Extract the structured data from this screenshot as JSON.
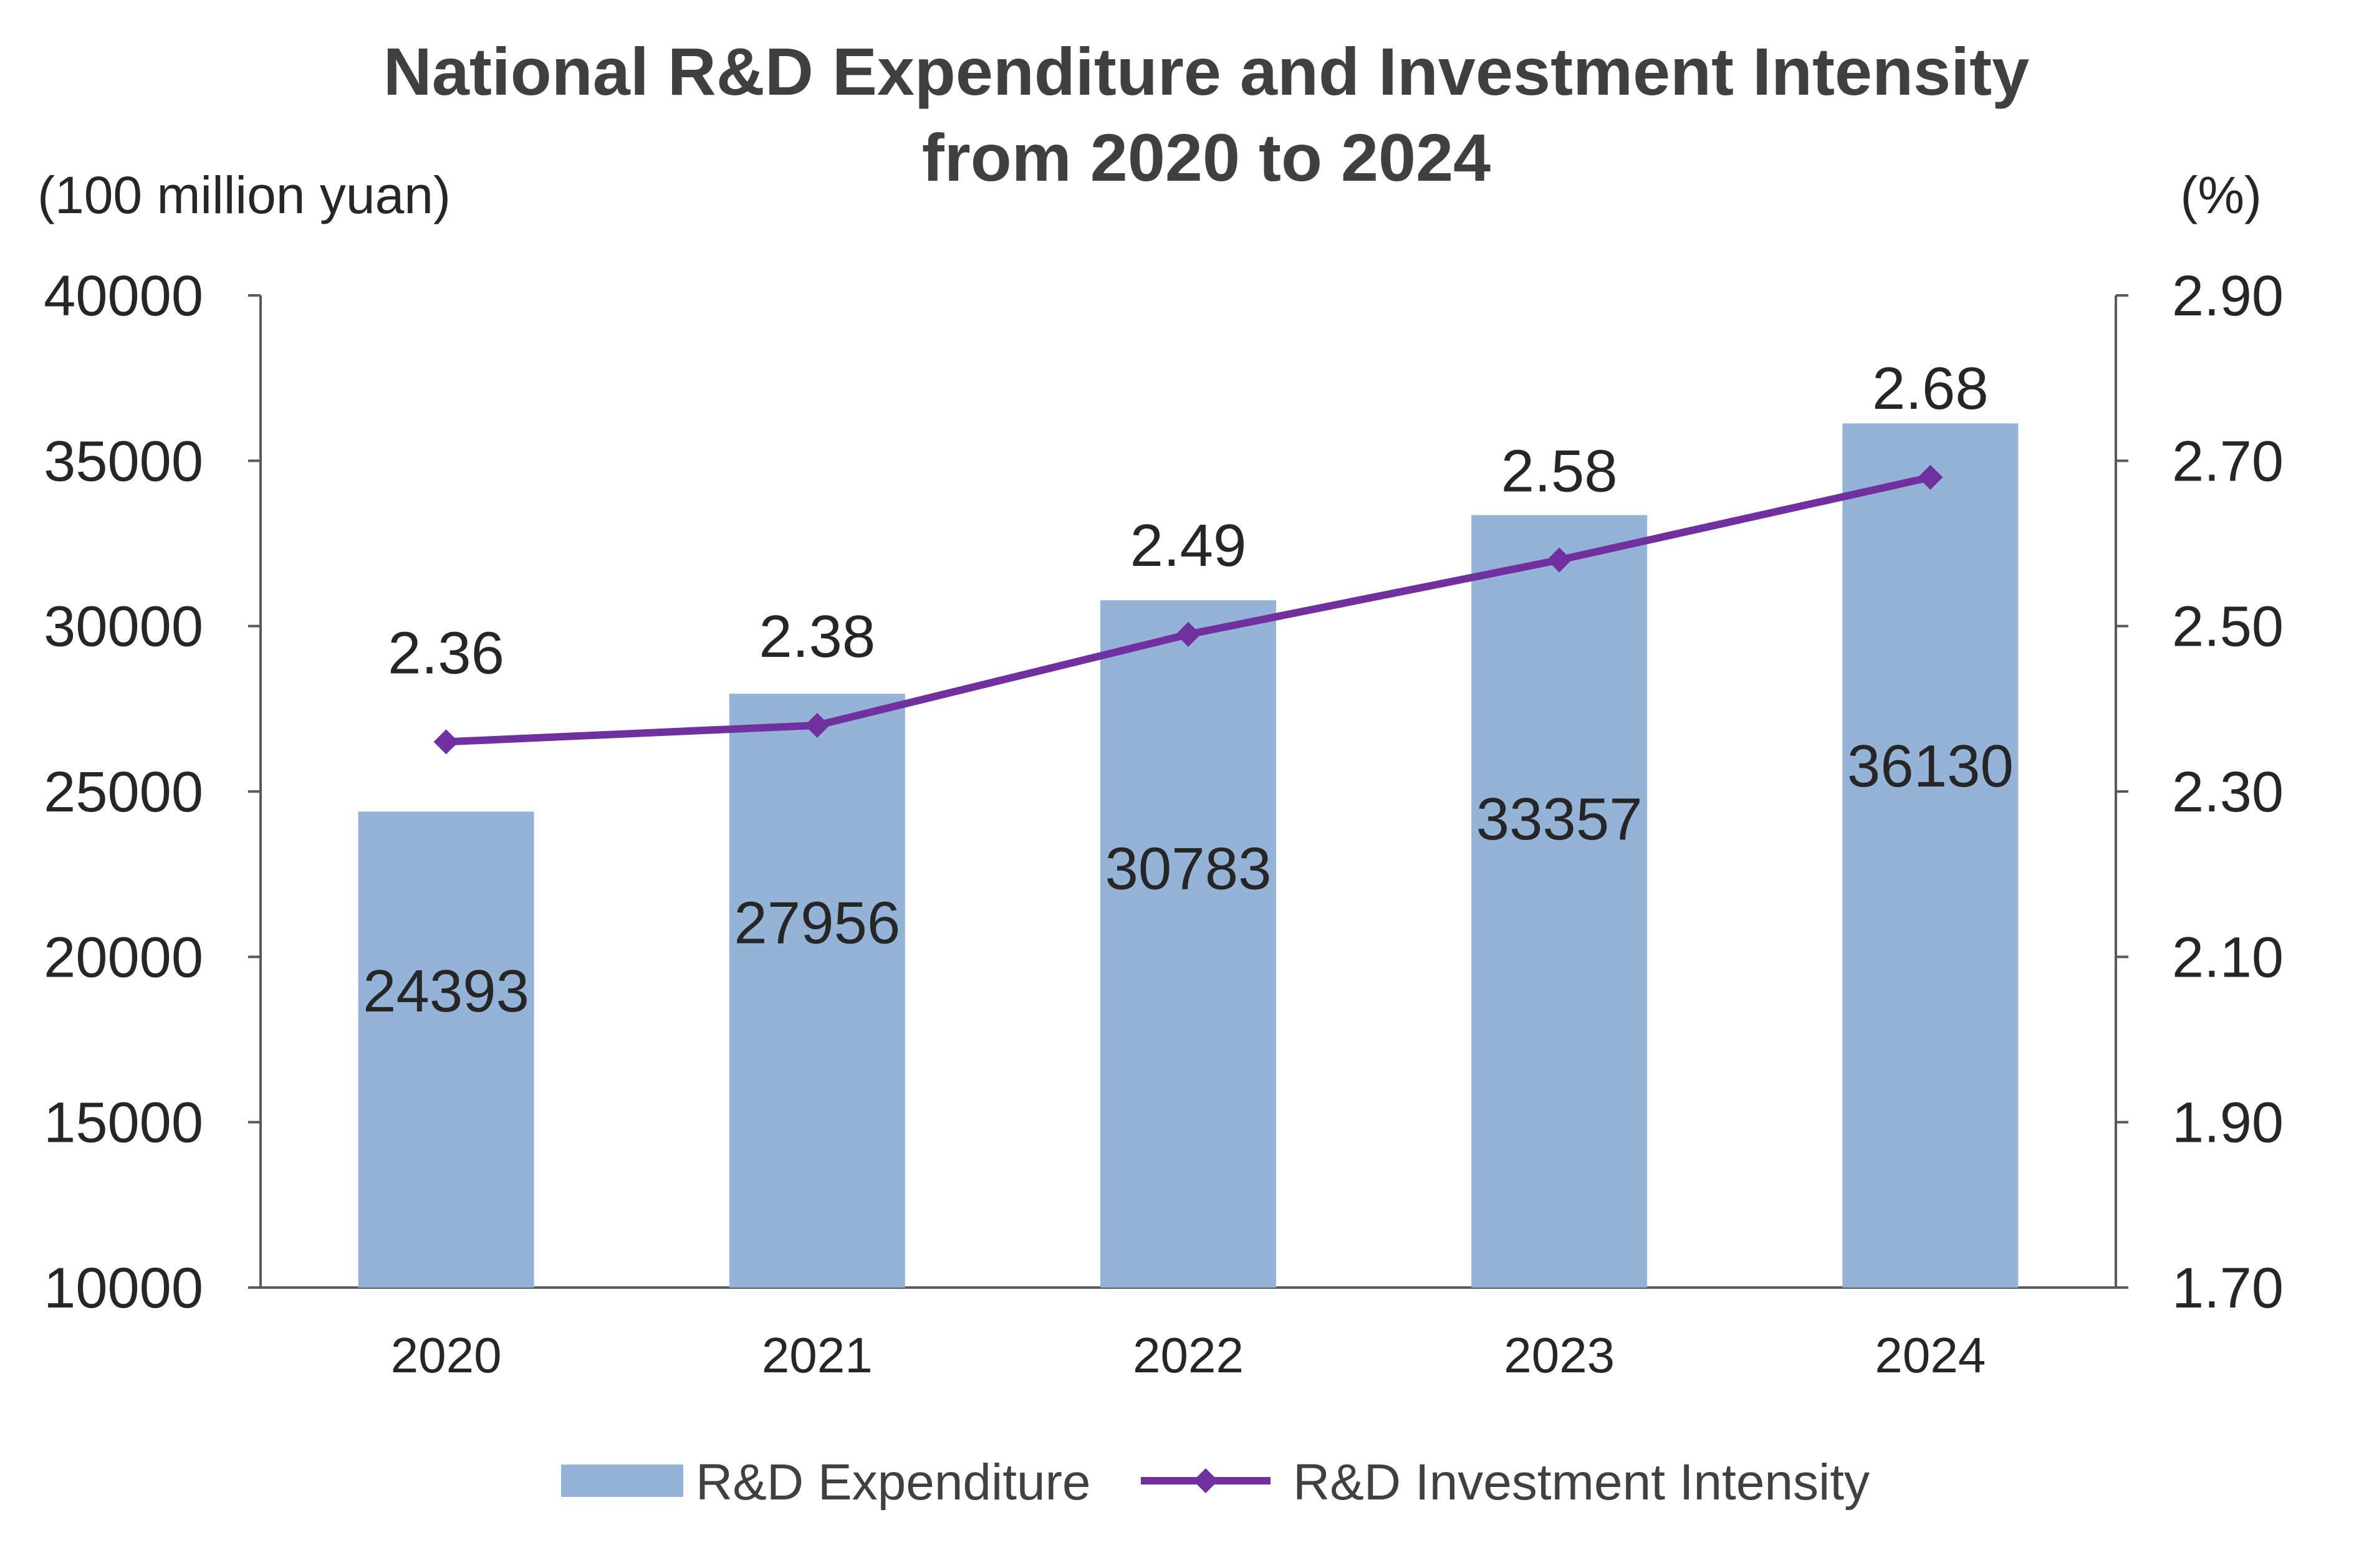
{
  "chart_data": {
    "type": "bar",
    "title_line1": "National R&D Expenditure and Investment Intensity",
    "title_line2": "from 2020 to 2024",
    "y_left_unit": "(100 million yuan)",
    "y_right_unit": "(%)",
    "categories": [
      "2020",
      "2021",
      "2022",
      "2023",
      "2024"
    ],
    "y_left": {
      "range": [
        10000,
        40000
      ],
      "ticks": [
        10000,
        15000,
        20000,
        25000,
        30000,
        35000,
        40000
      ],
      "tick_labels": [
        "10000",
        "15000",
        "20000",
        "25000",
        "30000",
        "35000",
        "40000"
      ]
    },
    "y_right": {
      "range": [
        1.7,
        2.9
      ],
      "ticks": [
        1.7,
        1.9,
        2.1,
        2.3,
        2.5,
        2.7,
        2.9
      ],
      "tick_labels": [
        "1.70",
        "1.90",
        "2.10",
        "2.30",
        "2.50",
        "2.70",
        "2.90"
      ]
    },
    "series": [
      {
        "name": "R&D Expenditure",
        "type": "bar",
        "axis": "left",
        "values": [
          24393,
          27956,
          30783,
          33357,
          36130
        ],
        "labels": [
          "24393",
          "27956",
          "30783",
          "33357",
          "36130"
        ]
      },
      {
        "name": "R&D Investment Intensity",
        "type": "line",
        "axis": "right",
        "values": [
          2.36,
          2.38,
          2.49,
          2.58,
          2.68
        ],
        "labels": [
          "2.36",
          "2.38",
          "2.49",
          "2.58",
          "2.68"
        ]
      }
    ],
    "grid": false,
    "legend_position": "bottom-center",
    "colors": {
      "bar": "#95b3d7",
      "line": "#7030a0",
      "axis": "#595959",
      "text": "#262626"
    }
  }
}
